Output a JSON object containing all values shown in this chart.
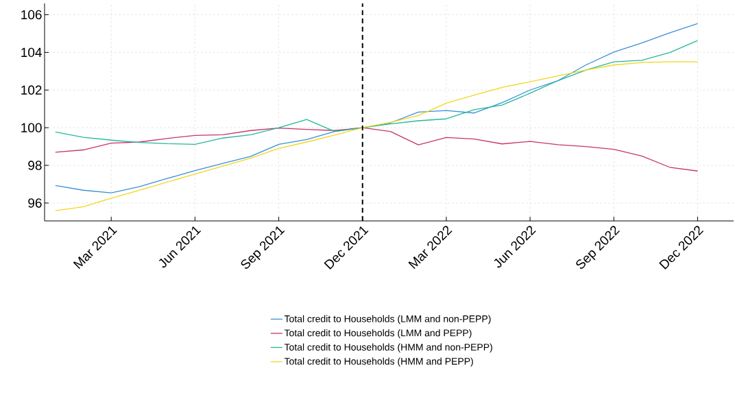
{
  "chart_data": {
    "type": "line",
    "x": [
      "2021-01",
      "2021-02",
      "2021-03",
      "2021-04",
      "2021-05",
      "2021-06",
      "2021-07",
      "2021-08",
      "2021-09",
      "2021-10",
      "2021-11",
      "2021-12",
      "2022-01",
      "2022-02",
      "2022-03",
      "2022-04",
      "2022-05",
      "2022-06",
      "2022-07",
      "2022-08",
      "2022-09",
      "2022-10",
      "2022-11",
      "2022-12"
    ],
    "series": [
      {
        "name": "Total credit to Households (LMM and non-PEPP)",
        "color": "#3a8fd8",
        "values": [
          96.93,
          96.68,
          96.54,
          96.87,
          97.3,
          97.72,
          98.11,
          98.48,
          99.12,
          99.37,
          99.8,
          100,
          100.26,
          100.83,
          100.91,
          100.78,
          101.33,
          102.0,
          102.5,
          103.33,
          104.02,
          104.5,
          105.04,
          105.53
        ]
      },
      {
        "name": "Total credit to Households (LMM and PEPP)",
        "color": "#c8336a",
        "values": [
          98.7,
          98.82,
          99.18,
          99.24,
          99.43,
          99.59,
          99.63,
          99.85,
          99.98,
          99.91,
          99.85,
          100,
          99.8,
          99.09,
          99.48,
          99.4,
          99.14,
          99.27,
          99.1,
          99.0,
          98.85,
          98.5,
          97.9,
          97.7
        ]
      },
      {
        "name": "Total credit to Households (HMM and non-PEPP)",
        "color": "#22b99a",
        "values": [
          99.77,
          99.49,
          99.34,
          99.22,
          99.15,
          99.12,
          99.45,
          99.63,
          100.0,
          100.44,
          99.8,
          100,
          100.2,
          100.37,
          100.47,
          100.96,
          101.2,
          101.83,
          102.5,
          103.06,
          103.5,
          103.58,
          103.99,
          104.63
        ]
      },
      {
        "name": "Total credit to Households (HMM and PEPP)",
        "color": "#f2d61c",
        "values": [
          95.59,
          95.8,
          96.26,
          96.68,
          97.11,
          97.54,
          97.96,
          98.39,
          98.9,
          99.24,
          99.61,
          100,
          100.28,
          100.65,
          101.3,
          101.73,
          102.14,
          102.44,
          102.75,
          103.06,
          103.33,
          103.46,
          103.5,
          103.5
        ]
      }
    ],
    "xlim": [
      "2020-12-20",
      "2023-01-10"
    ],
    "xticks": [
      {
        "value": "2021-03",
        "label": "Mar 2021"
      },
      {
        "value": "2021-06",
        "label": "Jun 2021"
      },
      {
        "value": "2021-09",
        "label": "Sep 2021"
      },
      {
        "value": "2021-12",
        "label": "Dec 2021"
      },
      {
        "value": "2022-03",
        "label": "Mar 2022"
      },
      {
        "value": "2022-06",
        "label": "Jun 2022"
      },
      {
        "value": "2022-09",
        "label": "Sep 2022"
      },
      {
        "value": "2022-12",
        "label": "Dec 2022"
      }
    ],
    "ylim": [
      95.05,
      106.6
    ],
    "yticks": [
      96,
      98,
      100,
      102,
      104,
      106
    ],
    "ref_lines": [
      {
        "axis": "x",
        "value": "2021-12",
        "color": "#000000",
        "line_style": "dashed"
      }
    ],
    "grid": true,
    "legend": "bottom",
    "marker": "none",
    "line_style": "solid"
  }
}
